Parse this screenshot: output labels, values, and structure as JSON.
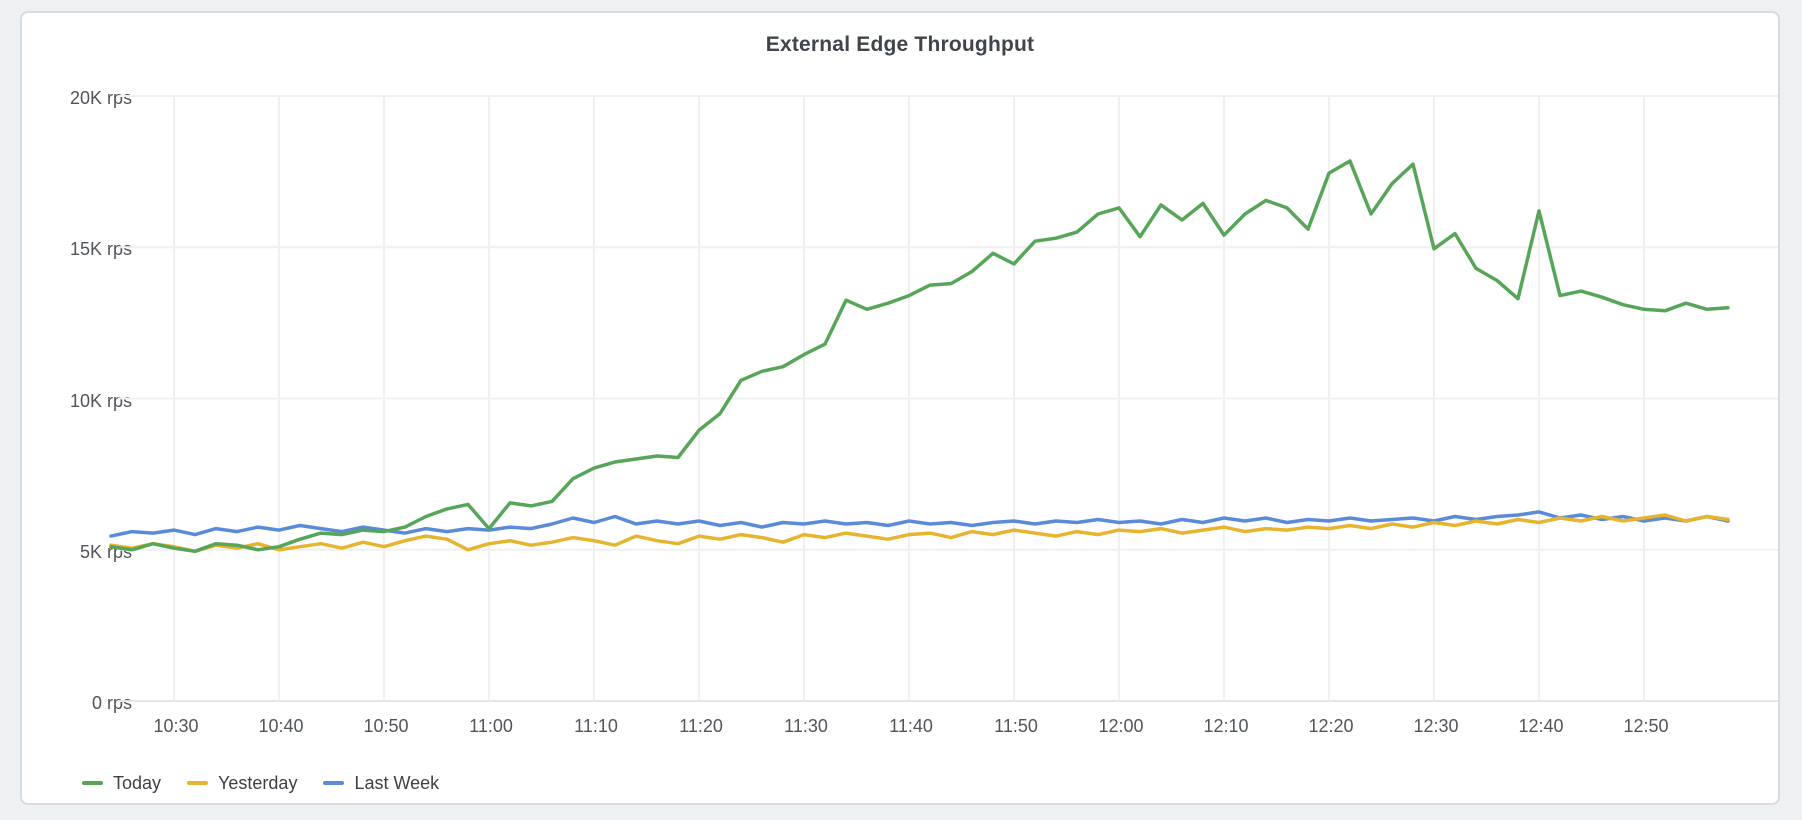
{
  "panel": {
    "title": "External Edge Throughput"
  },
  "colors": {
    "page_background": "#eef1f4",
    "panel_background": "#ffffff",
    "panel_border": "#d9dbdf",
    "grid": "#f0f0f0",
    "axis_baseline": "#e6e6e6",
    "title_text": "#40454b",
    "tick_text": "#51555b",
    "legend_text": "#3c4147",
    "today_green": "#57a559",
    "yesterday_yellow": "#e6b42e",
    "last_week_blue": "#5a8bd8"
  },
  "chart_data": {
    "type": "line",
    "title": "External Edge Throughput",
    "unit": "rps",
    "grid": true,
    "legend_position": "bottom-left",
    "ylim": [
      0,
      20000
    ],
    "y_ticks": [
      {
        "value": 20000,
        "label": "20K rps"
      },
      {
        "value": 15000,
        "label": "15K rps"
      },
      {
        "value": 10000,
        "label": "10K rps"
      },
      {
        "value": 5000,
        "label": "5K rps"
      },
      {
        "value": 0,
        "label": "0 rps"
      }
    ],
    "x_tick_labels": [
      "10:30",
      "10:40",
      "10:50",
      "11:00",
      "11:10",
      "11:20",
      "11:30",
      "11:40",
      "11:50",
      "12:00",
      "12:10",
      "12:20",
      "12:30",
      "12:40",
      "12:50"
    ],
    "x_start": "10:24",
    "x_end": "12:58",
    "x_interval_minutes": 2,
    "series": [
      {
        "name": "Today",
        "color": "#57a559",
        "values": [
          5100,
          5000,
          5200,
          5050,
          4950,
          5200,
          5150,
          5000,
          5100,
          5350,
          5550,
          5500,
          5650,
          5600,
          5750,
          6100,
          6350,
          6500,
          5700,
          6550,
          6450,
          6600,
          7350,
          7700,
          7900,
          8000,
          8100,
          8050,
          8950,
          9500,
          10600,
          10900,
          11050,
          11450,
          11800,
          13250,
          12950,
          13150,
          13400,
          13750,
          13800,
          14200,
          14800,
          14450,
          15200,
          15300,
          15500,
          16100,
          16300,
          15350,
          16400,
          15900,
          16450,
          15400,
          16100,
          16550,
          16300,
          15600,
          17450,
          17850,
          16100,
          17100,
          17750,
          14950,
          15450,
          14300,
          13900,
          13300,
          16200,
          13400,
          13550,
          13350,
          13100,
          12950,
          12900,
          13150,
          12950,
          13000
        ]
      },
      {
        "name": "Yesterday",
        "color": "#e6b42e",
        "values": [
          5150,
          5050,
          5200,
          5100,
          4950,
          5150,
          5050,
          5200,
          5000,
          5100,
          5200,
          5050,
          5250,
          5100,
          5300,
          5450,
          5350,
          5000,
          5200,
          5300,
          5150,
          5250,
          5400,
          5300,
          5150,
          5450,
          5300,
          5200,
          5450,
          5350,
          5500,
          5400,
          5250,
          5500,
          5400,
          5550,
          5450,
          5350,
          5500,
          5550,
          5400,
          5600,
          5500,
          5650,
          5550,
          5450,
          5600,
          5500,
          5650,
          5600,
          5700,
          5550,
          5650,
          5750,
          5600,
          5700,
          5650,
          5750,
          5700,
          5800,
          5700,
          5850,
          5750,
          5900,
          5800,
          5950,
          5850,
          6000,
          5900,
          6050,
          5950,
          6100,
          5950,
          6050,
          6150,
          5950,
          6100,
          6000
        ]
      },
      {
        "name": "Last Week",
        "color": "#5a8bd8",
        "values": [
          5450,
          5600,
          5550,
          5650,
          5500,
          5700,
          5600,
          5750,
          5650,
          5800,
          5700,
          5600,
          5750,
          5650,
          5550,
          5700,
          5600,
          5700,
          5650,
          5750,
          5700,
          5850,
          6050,
          5900,
          6100,
          5850,
          5950,
          5850,
          5950,
          5800,
          5900,
          5750,
          5900,
          5850,
          5950,
          5850,
          5900,
          5800,
          5950,
          5850,
          5900,
          5800,
          5900,
          5950,
          5850,
          5950,
          5900,
          6000,
          5900,
          5950,
          5850,
          6000,
          5900,
          6050,
          5950,
          6050,
          5900,
          6000,
          5950,
          6050,
          5950,
          6000,
          6050,
          5950,
          6100,
          6000,
          6100,
          6150,
          6250,
          6050,
          6150,
          6000,
          6100,
          5950,
          6050,
          5950,
          6100,
          5950
        ]
      }
    ]
  }
}
